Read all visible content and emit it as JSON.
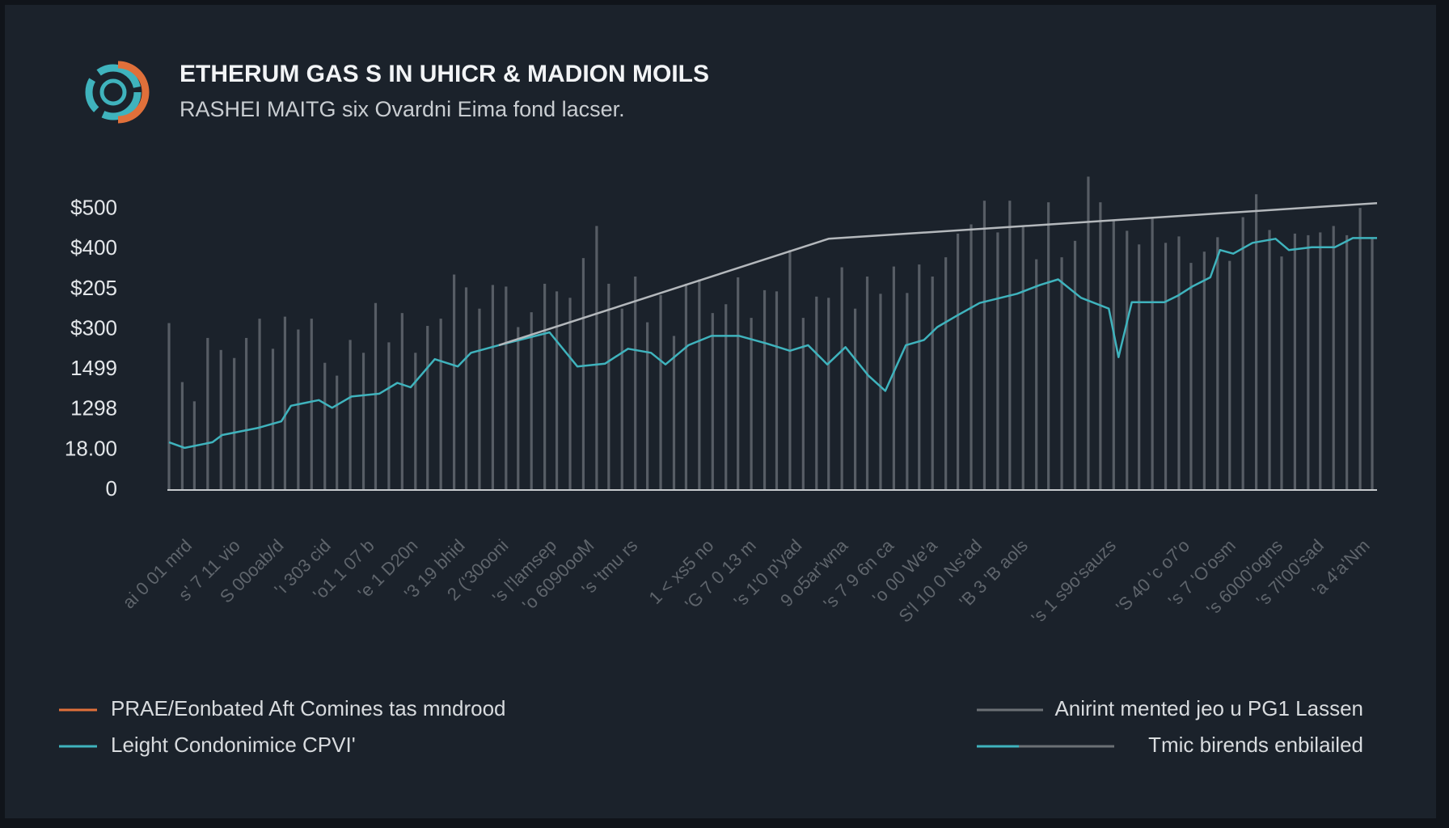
{
  "chart_data": {
    "type": "bar",
    "title": "ETHERUM GAS S IN UHICR & MADION MOILS",
    "subtitle": "RASHEI MAITG six Ovardni Eima fond lacser.",
    "xlim": [
      0,
      100
    ],
    "ylim": [
      0,
      800
    ],
    "grid": false,
    "yticks": [
      0,
      {
        "value": 100,
        "label": "18.00"
      },
      {
        "value": 200,
        "label": "1298"
      },
      {
        "value": 300,
        "label": "1499"
      },
      {
        "value": 400,
        "label": "$300"
      },
      {
        "value": 500,
        "label": "$205"
      },
      {
        "value": 600,
        "label": "$400"
      },
      {
        "value": 700,
        "label": "$500"
      }
    ],
    "xticks": [
      {
        "value": 1.7,
        "label": "ai 0 01 mrd"
      },
      {
        "value": 5.7,
        "label": "s' 7 11 vio"
      },
      {
        "value": 9.3,
        "label": "S 00oab/d"
      },
      {
        "value": 13.2,
        "label": "'ı 303 cid"
      },
      {
        "value": 16.8,
        "label": "'o1 1 07 b"
      },
      {
        "value": 20.4,
        "label": "'e 1 D20n"
      },
      {
        "value": 24.3,
        "label": "'3 19 bhid"
      },
      {
        "value": 27.9,
        "label": "2 ('30ooni"
      },
      {
        "value": 31.9,
        "label": "'s l'lamsep"
      },
      {
        "value": 35,
        "label": "'o 6090ooM"
      },
      {
        "value": 38.6,
        "label": "'s 'tmu rs"
      },
      {
        "value": 44.9,
        "label": "1 < xs5 no"
      },
      {
        "value": 48.4,
        "label": "'G 7 0 13 m"
      },
      {
        "value": 52.2,
        "label": "'s 1'0 p'yad"
      },
      {
        "value": 56,
        "label": "9 o5ar'wna"
      },
      {
        "value": 59.8,
        "label": "'s 7 9 6n ca"
      },
      {
        "value": 63.4,
        "label": "'o 00 We'a"
      },
      {
        "value": 67.1,
        "label": "S'l 10 0 Ns'ad"
      },
      {
        "value": 70.9,
        "label": "'B 3 'B aols"
      },
      {
        "value": 78.2,
        "label": "'s 1 s9o'sauzs"
      },
      {
        "value": 84.3,
        "label": "'S 40 'c o7'o"
      },
      {
        "value": 88.1,
        "label": "'s 7 'O'osm"
      },
      {
        "value": 92,
        "label": "'s 6000'ogns"
      },
      {
        "value": 95.4,
        "label": "'s 7l'00'sad"
      },
      {
        "value": 99.2,
        "label": "'a 4'a'Nm"
      }
    ],
    "series": [
      {
        "type": "bar",
        "color": "#575d65",
        "x": [
          0,
          1.1,
          2.1,
          3.2,
          4.3,
          5.4,
          6.4,
          7.5,
          8.6,
          9.6,
          10.7,
          11.8,
          12.9,
          13.9,
          15,
          16.1,
          17.1,
          18.2,
          19.3,
          20.4,
          21.4,
          22.5,
          23.6,
          24.6,
          25.7,
          26.8,
          27.9,
          28.9,
          30,
          31.1,
          32.1,
          33.2,
          34.3,
          35.4,
          36.4,
          37.5,
          38.6,
          39.6,
          40.7,
          41.8,
          42.8,
          43.9,
          45,
          46.1,
          47.1,
          48.2,
          49.3,
          50.3,
          51.4,
          52.5,
          53.6,
          54.6,
          55.7,
          56.8,
          57.8,
          58.9,
          60,
          61.1,
          62.1,
          63.2,
          64.3,
          65.3,
          66.4,
          67.5,
          68.6,
          69.6,
          70.7,
          71.8,
          72.8,
          73.9,
          75,
          76.1,
          77.1,
          78.2,
          79.3,
          80.3,
          81.4,
          82.5,
          83.6,
          84.6,
          85.7,
          86.8,
          87.8,
          88.9,
          90,
          91.1,
          92.1,
          93.2,
          94.3,
          95.3,
          96.4,
          97.5,
          98.6,
          99.6
        ],
        "values": [
          416,
          269,
          221,
          379,
          349,
          329,
          379,
          427,
          352,
          432,
          400,
          427,
          317,
          285,
          374,
          342,
          466,
          368,
          441,
          342,
          409,
          427,
          537,
          505,
          452,
          511,
          507,
          406,
          443,
          514,
          495,
          479,
          578,
          658,
          514,
          452,
          532,
          418,
          486,
          384,
          514,
          525,
          441,
          463,
          530,
          429,
          498,
          495,
          598,
          429,
          482,
          479,
          555,
          452,
          532,
          489,
          557,
          491,
          562,
          532,
          580,
          639,
          662,
          721,
          642,
          721,
          658,
          575,
          717,
          580,
          621,
          781,
          717,
          671,
          646,
          612,
          676,
          616,
          632,
          566,
          594,
          630,
          571,
          680,
          737,
          648,
          582,
          639,
          635,
          642,
          658,
          635,
          703,
          630
        ]
      },
      {
        "type": "line",
        "color": "#3fb3bd",
        "x": [
          0,
          1.3,
          3.6,
          4.4,
          7.4,
          9.3,
          10.1,
          12.4,
          13.5,
          15.1,
          17.4,
          18.9,
          20,
          22,
          23.9,
          25,
          27.3,
          31.5,
          33.8,
          36.1,
          38,
          39.9,
          41.1,
          43,
          44.9,
          47.2,
          49.5,
          51.4,
          52.9,
          54.5,
          56,
          57.9,
          59.3,
          61,
          62.5,
          63.6,
          65.2,
          67.1,
          70.2,
          72.1,
          73.6,
          75.5,
          77.8,
          78.6,
          79.7,
          82.4,
          83.5,
          84.7,
          86.2,
          87,
          88.1,
          89.7,
          91.6,
          92.7,
          94.6,
          96.5,
          98,
          100
        ],
        "values": [
          119,
          105,
          119,
          137,
          155,
          171,
          210,
          224,
          205,
          233,
          240,
          267,
          256,
          326,
          308,
          342,
          361,
          393,
          308,
          315,
          352,
          342,
          313,
          361,
          384,
          384,
          365,
          347,
          361,
          313,
          356,
          285,
          247,
          361,
          374,
          406,
          434,
          466,
          489,
          511,
          525,
          479,
          452,
          331,
          468,
          468,
          484,
          507,
          530,
          598,
          589,
          616,
          626,
          598,
          605,
          605,
          628,
          628
        ]
      },
      {
        "type": "line",
        "color": "#b4b8bc",
        "x": [
          27.3,
          54.6,
          100
        ],
        "values": [
          361,
          626,
          715
        ]
      }
    ],
    "legend": [
      {
        "label": "PRAE/Eonbated Aft Comines tas mndrood",
        "color": "#e0703a"
      },
      {
        "label": "Leight Condonimice CPVI'",
        "color": "#3fb3bd"
      },
      {
        "label": "Anirint mented jeo u PG1 Lassen",
        "color": "#6b7075"
      },
      {
        "label": "Tmic birends enbilailed",
        "color": "#3fb3bd"
      }
    ]
  }
}
